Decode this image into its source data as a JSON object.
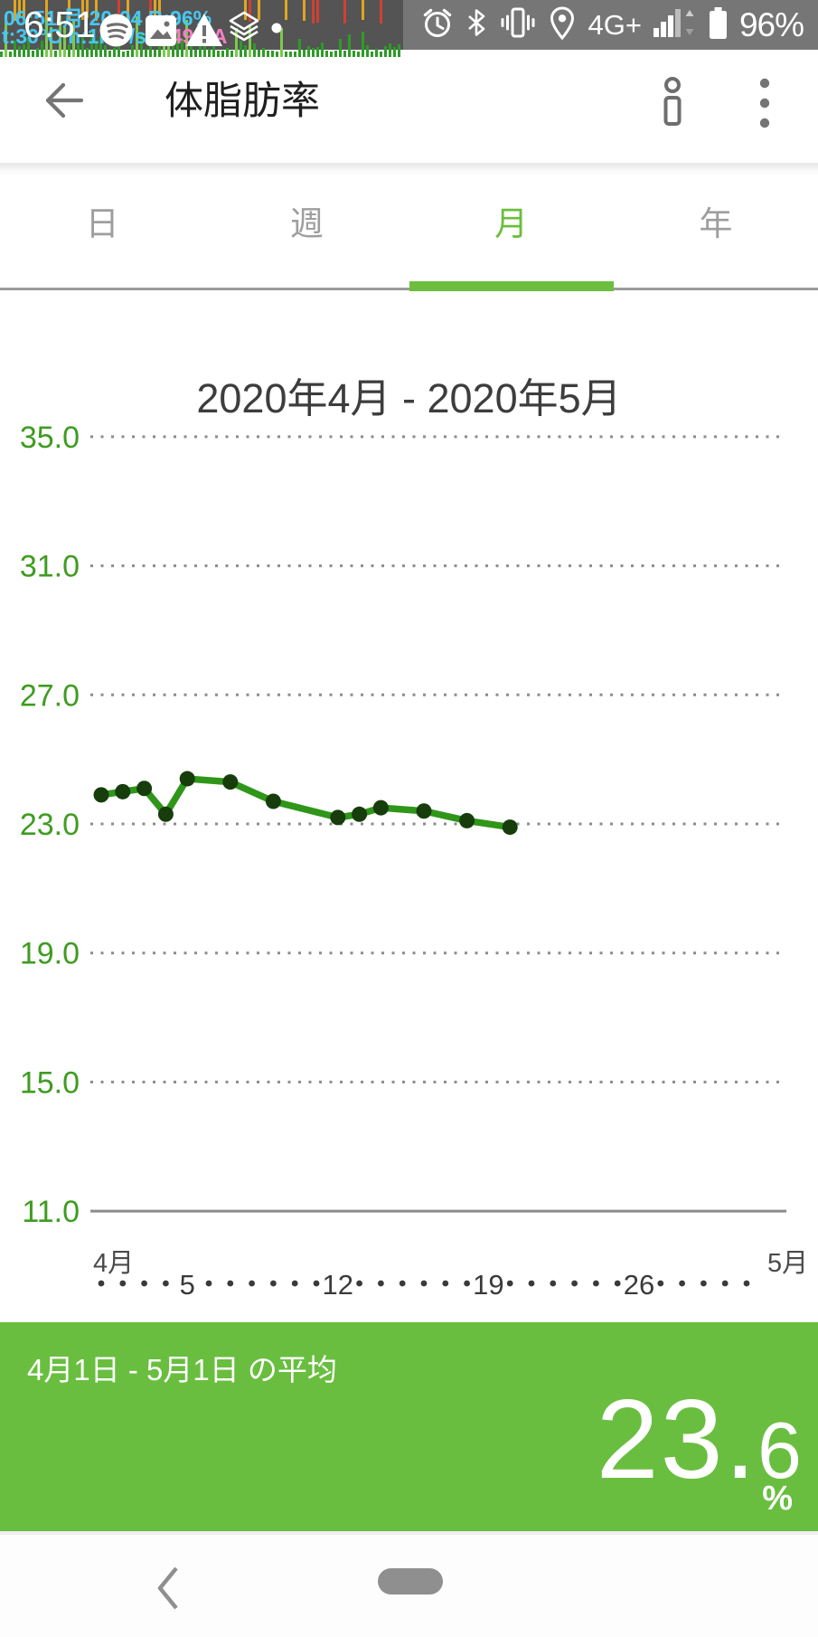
{
  "status_bar": {
    "clock_large": "6:51",
    "overlay_line1": "06:51 月 20:04 B:96%",
    "overlay_line2_left": "t:30°C h:1KB/s",
    "overlay_line2_right": " -149mA",
    "network": "4G+",
    "battery": "96%"
  },
  "header": {
    "title": "体脂肪率"
  },
  "tabs": {
    "active_index": 2,
    "items": [
      {
        "label": "日"
      },
      {
        "label": "週"
      },
      {
        "label": "月"
      },
      {
        "label": "年"
      }
    ]
  },
  "chart_data": {
    "type": "line",
    "title": "2020年4月 - 2020年5月",
    "series": [
      {
        "name": "体脂肪率",
        "x_days": [
          1,
          2,
          3,
          4,
          5,
          7,
          9,
          12,
          13,
          14,
          16,
          18,
          20
        ],
        "values": [
          23.9,
          24.0,
          24.1,
          23.3,
          24.4,
          24.3,
          23.7,
          23.2,
          23.3,
          23.5,
          23.4,
          23.1,
          22.9
        ]
      }
    ],
    "ylabel": "",
    "xlabel": "",
    "yticks": [
      "35.0",
      "31.0",
      "27.0",
      "23.0",
      "19.0",
      "15.0",
      "11.0"
    ],
    "ylim": [
      11.0,
      36.2
    ],
    "xlim_days": [
      1,
      31
    ],
    "x_month_labels": {
      "left": "4月",
      "right": "5月"
    },
    "x_day_labels": [
      5,
      12,
      19,
      26
    ],
    "grid": "horizontal dotted, solid baseline at 11.0",
    "legend": "none"
  },
  "summary": {
    "label": "4月1日 - 5月1日 の平均",
    "value_main": "23.",
    "value_frac": "6",
    "unit": "%"
  },
  "colors": {
    "accent_green": "#6CBE3E",
    "panel_green": "#69BE3F",
    "line_green": "#2F9619",
    "point_dark_green": "#163D0B",
    "axis_label_green": "#3F9C20",
    "grid_gray": "#8f8f8f",
    "status_cyan": "#45C8F5",
    "status_pink": "#F57FC4"
  }
}
